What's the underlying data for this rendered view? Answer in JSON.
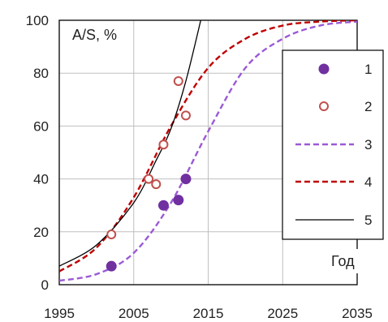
{
  "chart_data": {
    "type": "scatter",
    "ylabel": "A/S, %",
    "xlabel": "Год",
    "xlim": [
      1995,
      2035
    ],
    "ylim": [
      0,
      100
    ],
    "x_ticks": [
      "1995",
      "2005",
      "2015",
      "2025",
      "2035"
    ],
    "y_ticks": [
      "0",
      "20",
      "40",
      "60",
      "80",
      "100"
    ],
    "grid": true,
    "legend_position": "right",
    "series": [
      {
        "name": "1",
        "kind": "markers-filled",
        "color": "#7030a0",
        "points": [
          [
            2002,
            7
          ],
          [
            2009,
            30
          ],
          [
            2011,
            32
          ],
          [
            2012,
            40
          ]
        ]
      },
      {
        "name": "2",
        "kind": "markers-hollow",
        "color": "#c0504d",
        "points": [
          [
            2002,
            19
          ],
          [
            2007,
            40
          ],
          [
            2008,
            38
          ],
          [
            2009,
            53
          ],
          [
            2011,
            77
          ],
          [
            2012,
            64
          ]
        ]
      },
      {
        "name": "3",
        "kind": "line-dashed",
        "color": "#9b59d6",
        "points": [
          [
            1995,
            1.5
          ],
          [
            2000,
            4
          ],
          [
            2005,
            12
          ],
          [
            2010,
            31
          ],
          [
            2015,
            58
          ],
          [
            2020,
            82
          ],
          [
            2025,
            93
          ],
          [
            2030,
            98
          ],
          [
            2035,
            99.5
          ]
        ]
      },
      {
        "name": "4",
        "kind": "line-dashed",
        "color": "#c00000",
        "points": [
          [
            1995,
            5
          ],
          [
            2000,
            14
          ],
          [
            2005,
            33
          ],
          [
            2010,
            60
          ],
          [
            2015,
            82
          ],
          [
            2020,
            93
          ],
          [
            2025,
            98
          ],
          [
            2030,
            99.5
          ],
          [
            2035,
            100
          ]
        ]
      },
      {
        "name": "5",
        "kind": "line-solid",
        "color": "#000000",
        "points": [
          [
            1995,
            7
          ],
          [
            2000,
            15
          ],
          [
            2005,
            31
          ],
          [
            2008,
            47
          ],
          [
            2010,
            59
          ],
          [
            2012,
            77
          ],
          [
            2014,
            100
          ]
        ]
      }
    ]
  }
}
